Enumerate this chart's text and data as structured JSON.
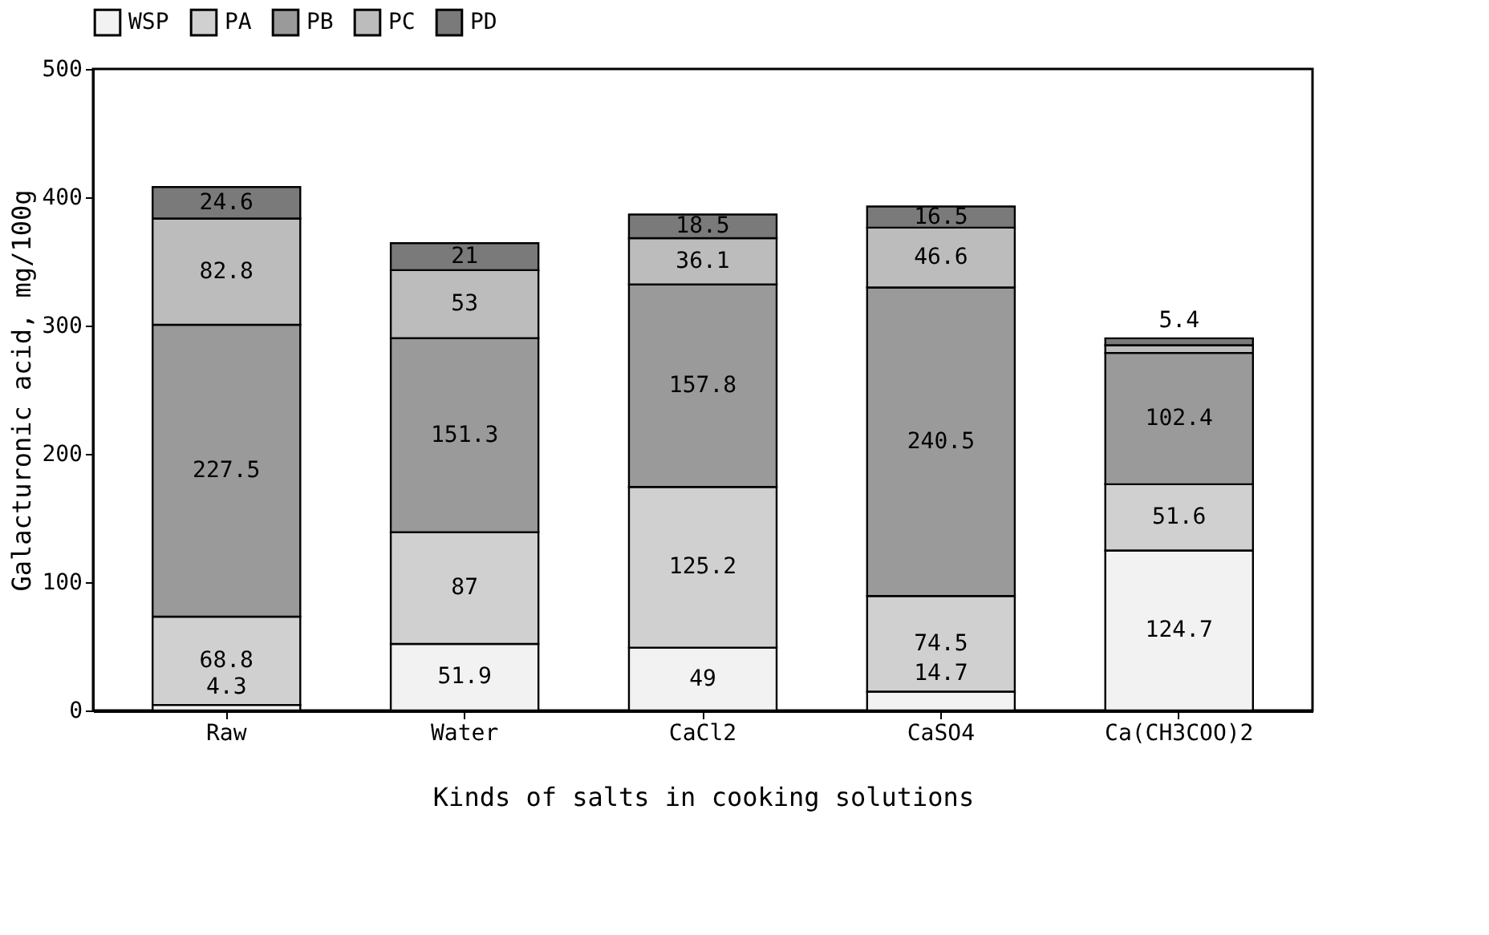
{
  "chart_data": {
    "type": "bar",
    "stacked": true,
    "xlabel": "Kinds of salts in cooking solutions",
    "ylabel": "Galacturonic acid, mg/100g",
    "categories": [
      "Raw",
      "Water",
      "CaCl2",
      "CaSO4",
      "Ca(CH3COO)2"
    ],
    "series": [
      {
        "name": "WSP",
        "color": "#f2f2f2",
        "values": [
          4.3,
          51.9,
          49,
          14.7,
          124.7
        ],
        "value_labels": [
          "4.3",
          "51.9",
          "49",
          "14.7",
          "124.7"
        ]
      },
      {
        "name": "PA",
        "color": "#d0d0d0",
        "values": [
          68.8,
          87,
          125.2,
          74.5,
          51.6
        ],
        "value_labels": [
          "68.8",
          "87",
          "125.2",
          "74.5",
          "51.6"
        ]
      },
      {
        "name": "PB",
        "color": "#9a9a9a",
        "values": [
          227.5,
          151.3,
          157.8,
          240.5,
          102.4
        ],
        "value_labels": [
          "227.5",
          "151.3",
          "157.8",
          "240.5",
          "102.4"
        ]
      },
      {
        "name": "PC",
        "color": "#bcbcbc",
        "values": [
          82.8,
          53,
          36.1,
          46.6,
          6
        ],
        "value_labels": [
          "82.8",
          "53",
          "36.1",
          "46.6",
          null
        ]
      },
      {
        "name": "PD",
        "color": "#7a7a7a",
        "values": [
          24.6,
          21,
          18.5,
          16.5,
          5.4
        ],
        "value_labels": [
          "24.6",
          "21",
          "18.5",
          "16.5",
          "5.4"
        ]
      }
    ],
    "ylim": [
      0,
      500
    ],
    "yticks": [
      0,
      100,
      200,
      300,
      400,
      500
    ],
    "grid": false,
    "legend": "top"
  }
}
